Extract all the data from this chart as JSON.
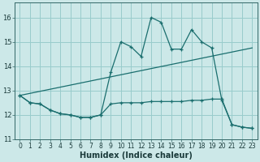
{
  "xlabel": "Humidex (Indice chaleur)",
  "background_color": "#cce8e8",
  "grid_color": "#99cccc",
  "line_color": "#1a6e6e",
  "xlim": [
    -0.5,
    23.5
  ],
  "ylim": [
    11.0,
    16.6
  ],
  "yticks": [
    11,
    12,
    13,
    14,
    15,
    16
  ],
  "xticks": [
    0,
    1,
    2,
    3,
    4,
    5,
    6,
    7,
    8,
    9,
    10,
    11,
    12,
    13,
    14,
    15,
    16,
    17,
    18,
    19,
    20,
    21,
    22,
    23
  ],
  "line1_x": [
    0,
    1,
    2,
    3,
    4,
    5,
    6,
    7,
    8,
    9,
    10,
    11,
    12,
    13,
    14,
    15,
    16,
    17,
    18,
    19,
    20,
    21,
    22,
    23
  ],
  "line1_y": [
    12.8,
    12.5,
    12.45,
    12.2,
    12.05,
    12.0,
    11.9,
    11.9,
    12.0,
    13.75,
    15.0,
    14.8,
    14.4,
    16.0,
    15.8,
    14.7,
    14.7,
    15.5,
    15.0,
    14.75,
    12.6,
    11.6,
    11.5,
    11.45
  ],
  "line2_x": [
    0,
    1,
    2,
    3,
    4,
    5,
    6,
    7,
    8,
    9,
    10,
    11,
    12,
    13,
    14,
    15,
    16,
    17,
    18,
    19,
    20,
    21,
    22,
    23
  ],
  "line2_y": [
    12.8,
    12.5,
    12.45,
    12.2,
    12.05,
    12.0,
    11.9,
    11.9,
    12.0,
    12.45,
    12.5,
    12.5,
    12.5,
    12.55,
    12.55,
    12.55,
    12.55,
    12.6,
    12.6,
    12.65,
    12.65,
    11.6,
    11.5,
    11.45
  ],
  "line3_x": [
    0,
    23
  ],
  "line3_y": [
    12.8,
    14.75
  ],
  "xlabel_fontsize": 7,
  "tick_fontsize": 6
}
